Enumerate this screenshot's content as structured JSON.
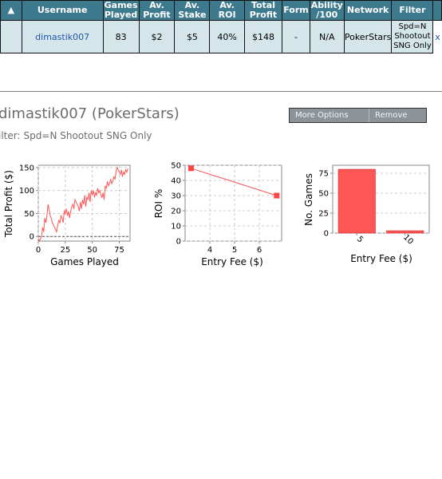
{
  "table": {
    "headers": [
      "",
      "Username",
      "Games Played",
      "Av. Profit",
      "Av. Stake",
      "Av. ROI",
      "Total Profit",
      "Form",
      "Ability /100",
      "Network",
      "Filter",
      ""
    ],
    "row": {
      "username": "dimastik007",
      "games_played": "83",
      "av_profit": "$2",
      "av_stake": "$5",
      "av_roi": "40%",
      "total_profit": "$148",
      "form": "-",
      "ability": "N/A",
      "network": "PokerStars",
      "filter": "Spd=N Shootout SNG Only",
      "delete": "x"
    }
  },
  "detail": {
    "title": "dimastik007 (PokerStars)",
    "filter_label": "ilter:",
    "filter_value": "Spd=N Shootout SNG Only",
    "more_options": "More Options",
    "remove": "Remove"
  },
  "chart_data": [
    {
      "type": "line",
      "xlabel": "Games Played",
      "ylabel": "Total Profit ($)",
      "xlim": [
        0,
        85
      ],
      "ylim": [
        -10,
        155
      ],
      "x_ticks": [
        "0",
        "25",
        "50",
        "75"
      ],
      "y_ticks": [
        "0",
        "50",
        "100",
        "150"
      ],
      "zero_line": true,
      "series": [
        {
          "color": "#ff5555",
          "x": [
            0,
            1,
            2,
            3,
            4,
            5,
            6,
            7,
            8,
            9,
            10,
            11,
            12,
            13,
            14,
            15,
            16,
            17,
            18,
            19,
            20,
            21,
            22,
            23,
            24,
            25,
            26,
            27,
            28,
            29,
            30,
            31,
            32,
            33,
            34,
            35,
            36,
            37,
            38,
            39,
            40,
            41,
            42,
            43,
            44,
            45,
            46,
            47,
            48,
            49,
            50,
            51,
            52,
            53,
            54,
            55,
            56,
            57,
            58,
            59,
            60,
            61,
            62,
            63,
            64,
            65,
            66,
            67,
            68,
            69,
            70,
            71,
            72,
            73,
            74,
            75,
            76,
            77,
            78,
            79,
            80,
            81,
            82,
            83
          ],
          "y": [
            -5,
            -10,
            -5,
            0,
            20,
            10,
            40,
            30,
            45,
            70,
            60,
            45,
            40,
            30,
            25,
            20,
            15,
            10,
            25,
            35,
            30,
            45,
            40,
            30,
            55,
            50,
            60,
            45,
            55,
            40,
            55,
            65,
            70,
            60,
            80,
            75,
            70,
            65,
            55,
            75,
            60,
            80,
            70,
            90,
            65,
            85,
            80,
            95,
            75,
            100,
            90,
            100,
            85,
            95,
            90,
            105,
            95,
            100,
            90,
            85,
            95,
            80,
            110,
            105,
            120,
            110,
            115,
            125,
            115,
            120,
            130,
            125,
            140,
            150,
            145,
            140,
            135,
            145,
            130,
            140,
            135,
            145,
            140,
            148
          ]
        }
      ]
    },
    {
      "type": "line",
      "xlabel": "Entry Fee ($)",
      "ylabel": "ROI %",
      "xlim": [
        3,
        6.9
      ],
      "ylim": [
        0,
        50
      ],
      "x_ticks": [
        "4",
        "5",
        "6"
      ],
      "y_ticks": [
        "0",
        "10",
        "20",
        "30",
        "40",
        "50"
      ],
      "series": [
        {
          "color": "#ff5555",
          "x": [
            3.24,
            6.7
          ],
          "y": [
            48,
            30
          ]
        }
      ]
    },
    {
      "type": "bar",
      "xlabel": "Entry Fee ($)",
      "ylabel": "No. Games",
      "categories": [
        "5",
        "10"
      ],
      "values": [
        80,
        3
      ],
      "ylim": [
        0,
        85
      ],
      "y_ticks": [
        "0",
        "25",
        "50",
        "75"
      ],
      "color": "#ff5555"
    }
  ]
}
